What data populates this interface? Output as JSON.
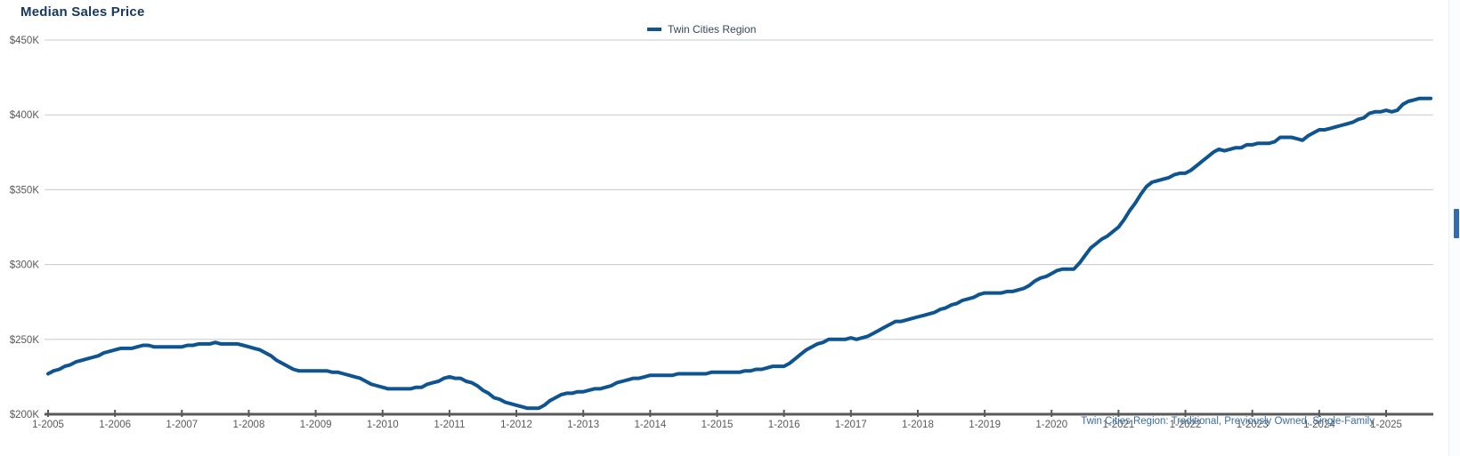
{
  "page": {
    "title": "Median Sales Price"
  },
  "legend": {
    "label": "Twin Cities Region"
  },
  "footer": {
    "note": "Twin Cities Region: Traditional, Previously Owned, Single-Family"
  },
  "colors": {
    "line": "#0d5491",
    "title": "#17375d",
    "grid": "#c8c8c8",
    "axis": "#595959",
    "tick_label": "#595959",
    "footnote": "#3c6ea5"
  },
  "chart_data": {
    "type": "line",
    "title": "Median Sales Price",
    "grid": "horizontal",
    "legend_position": "top-center",
    "ylim": [
      200,
      450
    ],
    "y_unit": "USD thousands",
    "y_ticks": [
      {
        "label": "$200K",
        "value": 200
      },
      {
        "label": "$250K",
        "value": 250
      },
      {
        "label": "$300K",
        "value": 300
      },
      {
        "label": "$350K",
        "value": 350
      },
      {
        "label": "$400K",
        "value": 400
      },
      {
        "label": "$450K",
        "value": 450
      }
    ],
    "x_ticks": [
      "1-2005",
      "1-2006",
      "1-2007",
      "1-2008",
      "1-2009",
      "1-2010",
      "1-2011",
      "1-2012",
      "1-2013",
      "1-2014",
      "1-2015",
      "1-2016",
      "1-2017",
      "1-2018",
      "1-2019",
      "1-2020",
      "1-2021",
      "1-2022",
      "1-2023",
      "1-2024",
      "1-2025"
    ],
    "x_start_month": "2005-01",
    "x_end_month": "2025-09",
    "series": [
      {
        "name": "Twin Cities Region",
        "color": "#0d5491",
        "values": [
          227,
          229,
          230,
          232,
          233,
          235,
          236,
          237,
          238,
          239,
          241,
          242,
          243,
          244,
          244,
          244,
          245,
          246,
          246,
          245,
          245,
          245,
          245,
          245,
          245,
          246,
          246,
          247,
          247,
          247,
          248,
          247,
          247,
          247,
          247,
          246,
          245,
          244,
          243,
          241,
          239,
          236,
          234,
          232,
          230,
          229,
          229,
          229,
          229,
          229,
          229,
          228,
          228,
          227,
          226,
          225,
          224,
          222,
          220,
          219,
          218,
          217,
          217,
          217,
          217,
          217,
          218,
          218,
          220,
          221,
          222,
          224,
          225,
          224,
          224,
          222,
          221,
          219,
          216,
          214,
          211,
          210,
          208,
          207,
          206,
          205,
          204,
          204,
          204,
          206,
          209,
          211,
          213,
          214,
          214,
          215,
          215,
          216,
          217,
          217,
          218,
          219,
          221,
          222,
          223,
          224,
          224,
          225,
          226,
          226,
          226,
          226,
          226,
          227,
          227,
          227,
          227,
          227,
          227,
          228,
          228,
          228,
          228,
          228,
          228,
          229,
          229,
          230,
          230,
          231,
          232,
          232,
          232,
          234,
          237,
          240,
          243,
          245,
          247,
          248,
          250,
          250,
          250,
          250,
          251,
          250,
          251,
          252,
          254,
          256,
          258,
          260,
          262,
          262,
          263,
          264,
          265,
          266,
          267,
          268,
          270,
          271,
          273,
          274,
          276,
          277,
          278,
          280,
          281,
          281,
          281,
          281,
          282,
          282,
          283,
          284,
          286,
          289,
          291,
          292,
          294,
          296,
          297,
          297,
          297,
          301,
          306,
          311,
          314,
          317,
          319,
          322,
          325,
          330,
          336,
          341,
          347,
          352,
          355,
          356,
          357,
          358,
          360,
          361,
          361,
          363,
          366,
          369,
          372,
          375,
          377,
          376,
          377,
          378,
          378,
          380,
          380,
          381,
          381,
          381,
          382,
          385,
          385,
          385,
          384,
          383,
          386,
          388,
          390,
          390,
          391,
          392,
          393,
          394,
          395,
          397,
          398,
          401,
          402,
          402,
          403,
          402,
          403,
          407,
          409,
          410,
          411,
          411,
          411
        ]
      }
    ]
  }
}
